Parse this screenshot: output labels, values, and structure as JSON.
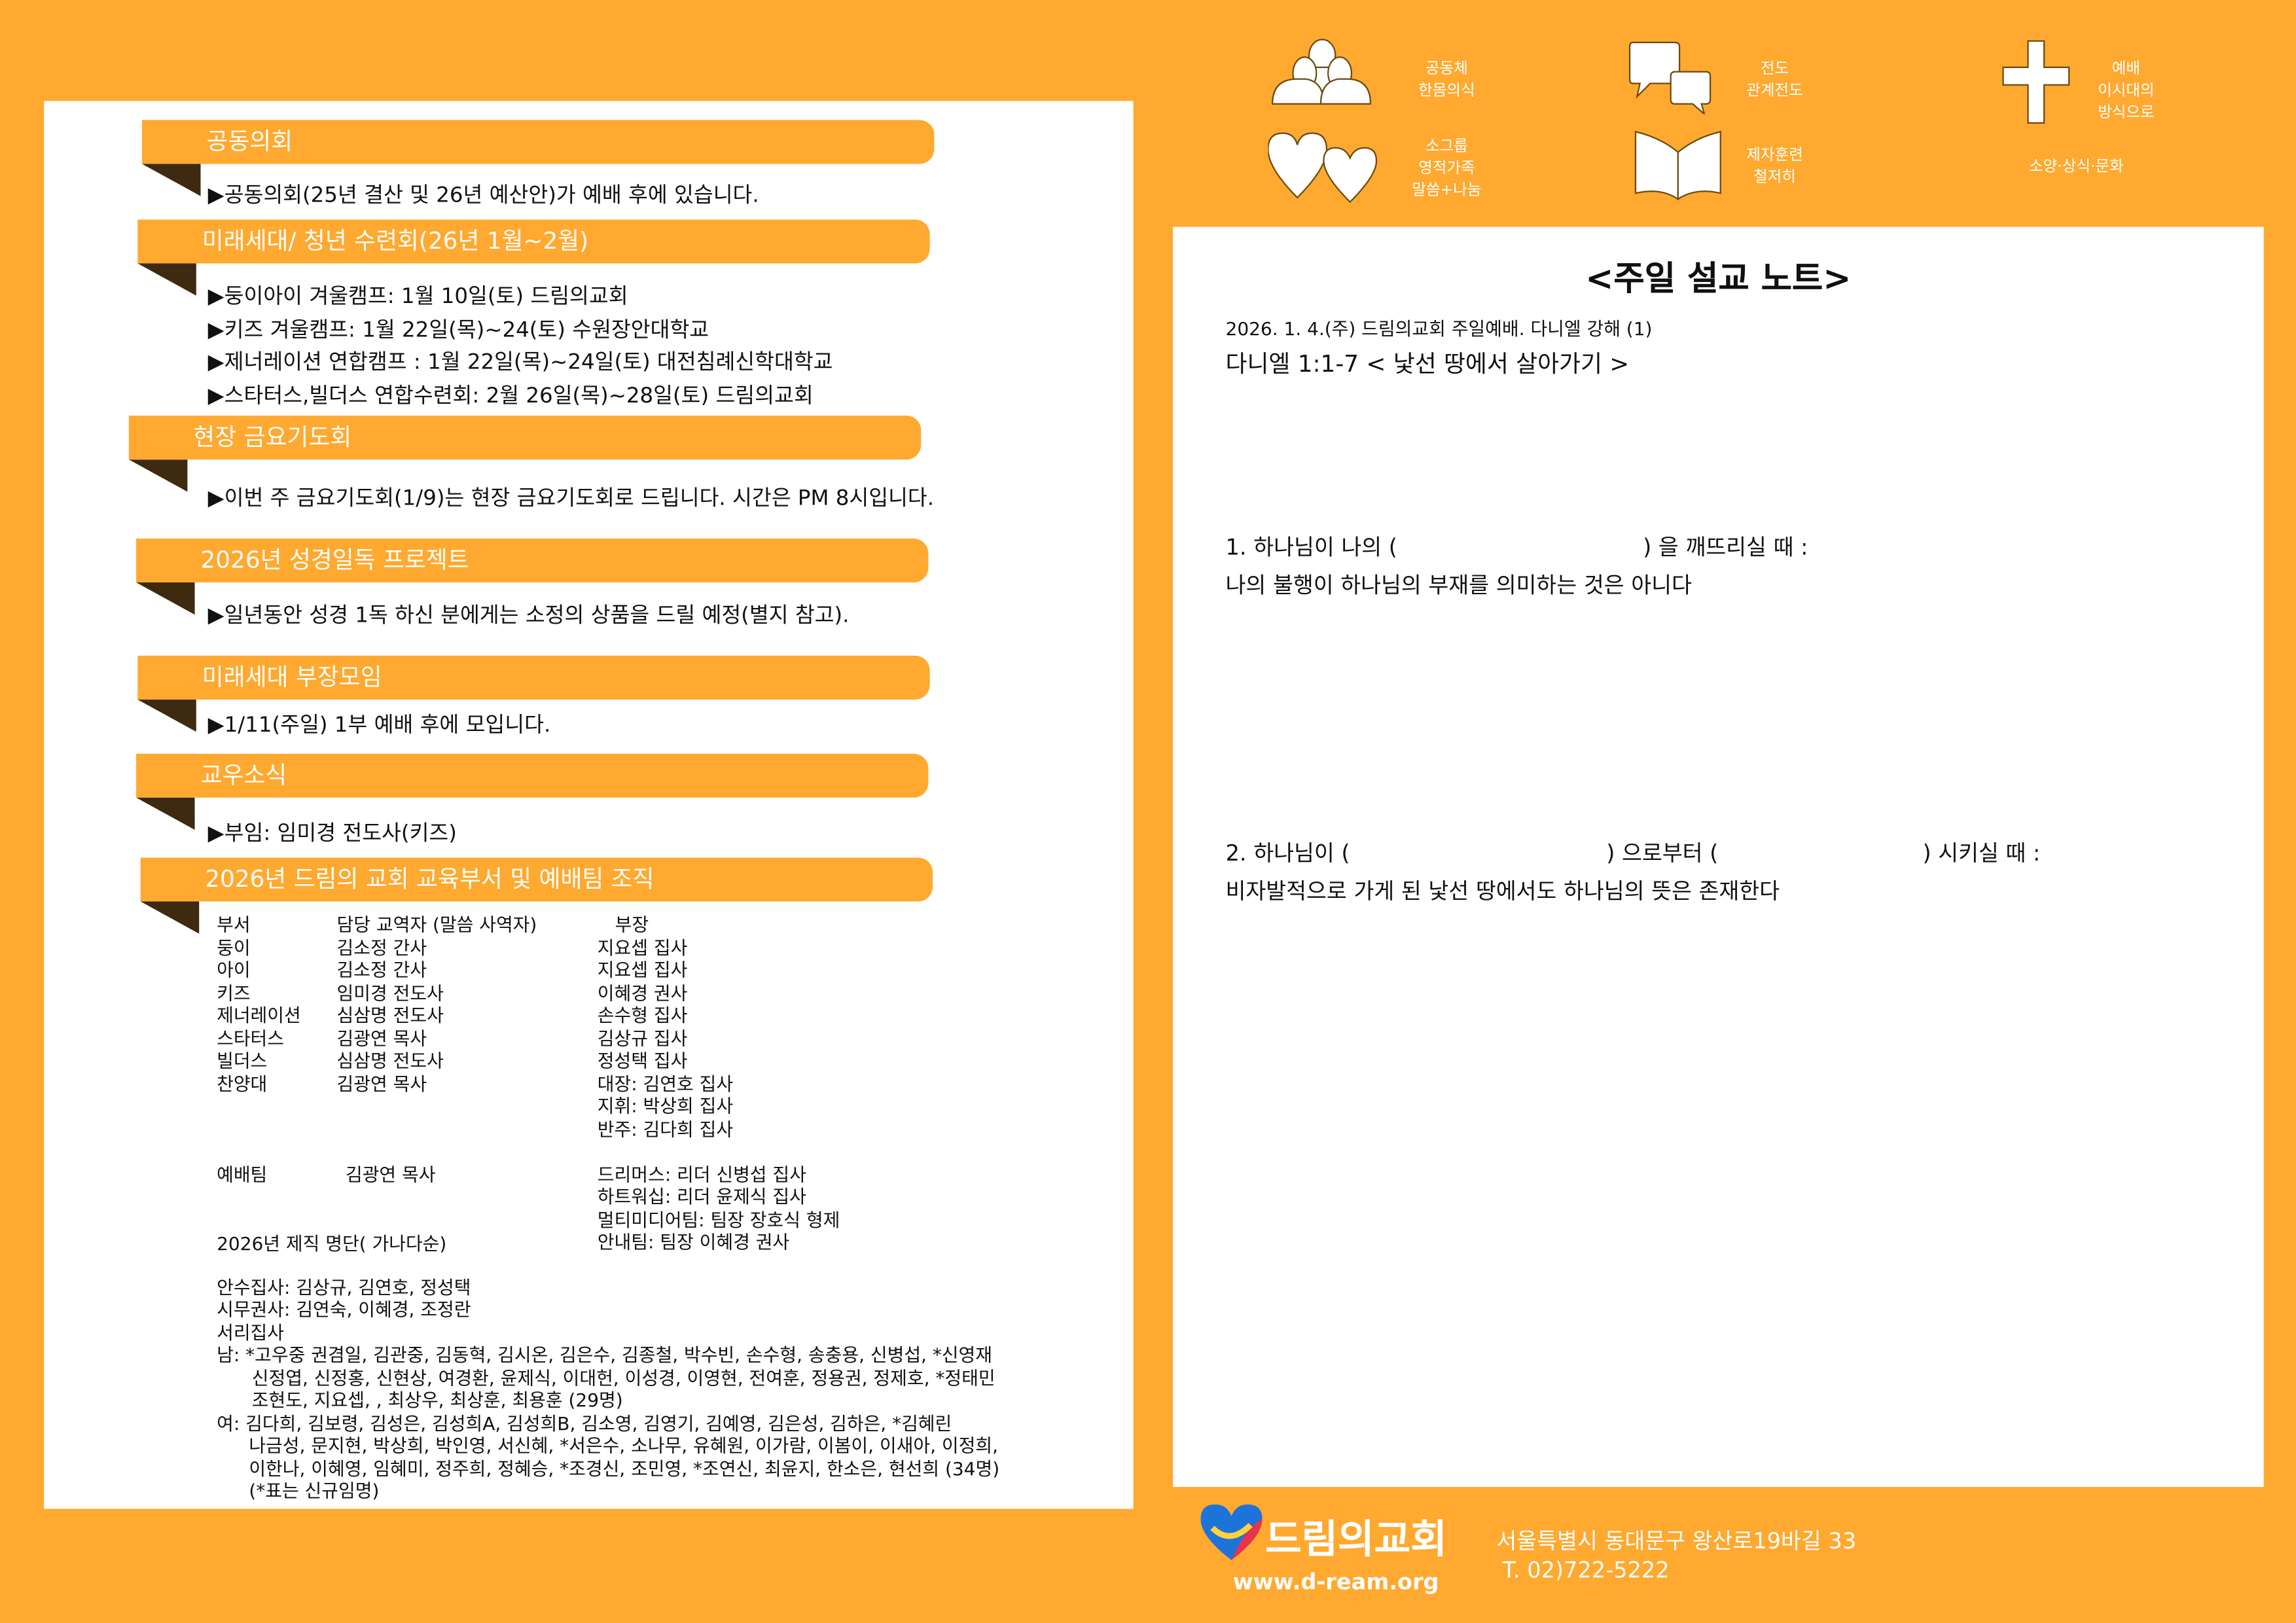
{
  "left": {
    "sections": [
      {
        "title": "공동의회",
        "items": [
          "▶공동의회(25년 결산 및 26년 예산안)가 예배 후에 있습니다."
        ]
      },
      {
        "title": "미래세대/ 청년 수련회(26년 1월~2월)",
        "items": [
          "▶둥이아이 겨울캠프: 1월 10일(토) 드림의교회",
          "▶키즈 겨울캠프: 1월 22일(목)~24(토) 수원장안대학교",
          "▶제너레이션 연합캠프 : 1월 22일(목)~24일(토) 대전침례신학대학교",
          "▶스타터스,빌더스 연합수련회: 2월 26일(목)~28일(토) 드림의교회"
        ]
      },
      {
        "title": "현장 금요기도회",
        "items": [
          "▶이번 주 금요기도회(1/9)는 현장 금요기도회로 드립니다. 시간은 PM 8시입니다."
        ]
      },
      {
        "title": "2026년 성경일독 프로젝트",
        "items": [
          "▶일년동안 성경 1독 하신 분에게는 소정의 상품을 드릴 예정(별지 참고)."
        ]
      },
      {
        "title": "미래세대 부장모임",
        "items": [
          "▶1/11(주일) 1부 예배 후에 모입니다."
        ]
      },
      {
        "title": "교우소식",
        "items": [
          "▶부임: 임미경 전도사(키즈)"
        ]
      },
      {
        "title": "2026년 드림의 교회  교육부서 및 예배팀 조직",
        "items": []
      }
    ],
    "org_table": {
      "headers": [
        "부서",
        "담당 교역자 (말씀 사역자)",
        "부장"
      ],
      "rows": [
        [
          "둥이",
          "김소정 간사",
          "지요셉 집사"
        ],
        [
          "아이",
          "김소정 간사",
          "지요셉 집사"
        ],
        [
          "키즈",
          "임미경 전도사",
          "이혜경 권사"
        ],
        [
          "제너레이션",
          "심삼명 전도사",
          "손수형 집사"
        ],
        [
          "스타터스",
          "김광연 목사",
          "김상규 집사"
        ],
        [
          "빌더스",
          "심삼명 전도사",
          "정성택 집사"
        ],
        [
          "찬양대",
          "김광연 목사",
          "대장: 김연호 집사"
        ],
        [
          "",
          "",
          "지휘: 박상희 집사"
        ],
        [
          "",
          "",
          "반주: 김다희 집사"
        ],
        [
          "예배팀",
          "김광연 목사",
          "드리머스: 리더 신병섭 집사"
        ],
        [
          "",
          "",
          "하트워십: 리더 윤제식 집사"
        ],
        [
          "",
          "",
          "멀티미디어팀: 팀장 장호식 형제"
        ],
        [
          "",
          "",
          "안내팀: 팀장 이혜경 권사"
        ]
      ]
    },
    "roster": {
      "title": "2026년 제직 명단( 가나다순)",
      "lines": [
        "안수집사: 김상규, 김연호, 정성택",
        "시무권사: 김연숙, 이혜경, 조정란",
        "서리집사",
        "남: *고우중 권겸일, 김관중, 김동혁, 김시온, 김은수, 김종철, 박수빈, 손수형, 송충용, 신병섭, *신영재",
        "신정엽, 신정홍, 신현상, 여경환, 윤제식, 이대헌, 이성경, 이영현, 전여훈, 정용권, 정제호, *정태민",
        "조현도, 지요셉, , 최상우, 최상훈, 최용훈 (29명)",
        "여: 김다희, 김보령,  김성은, 김성희A, 김성희B, 김소영, 김영기, 김예영, 김은성, 김하은, *김혜린",
        "나금성, 문지현, 박상희, 박인영, 서신혜, *서은수, 소나무, 유혜원, 이가람, 이봄이, 이새아, 이정희,",
        "이한나, 이혜영, 임혜미, 정주희, 정혜승, *조경신, 조민영, *조연신, 최윤지, 한소은,  현선희 (34명)",
        "(*표는 신규임명)"
      ]
    }
  },
  "values": [
    {
      "icon": "people-icon",
      "title": "공동체",
      "sub": "한몸의식"
    },
    {
      "icon": "speech-bubbles-icon",
      "title": "전도",
      "sub": "관계전도"
    },
    {
      "icon": "cross-icon",
      "title": "예배",
      "sub": "이시대의\n방식으로"
    },
    {
      "icon": "hearts-icon",
      "title": "소그룹",
      "sub": "영적가족\n말씀+나눔"
    },
    {
      "icon": "book-icon",
      "title": "제자훈련",
      "sub": "철저히"
    },
    {
      "icon": "",
      "title": "소양·상식·문화",
      "sub": ""
    }
  ],
  "sermon": {
    "title": "<주일 설교 노트>",
    "meta": "2026. 1. 4.(주) 드림의교회 주일예배. 다니엘 강해 (1)",
    "passage": "다니엘 1:1-7 < 낯선 땅에서 살아가기 >",
    "p1a": "1. 하나님이 나의 (",
    "p1b": ") 을 깨뜨리실 때 :",
    "p1c": "나의 불행이 하나님의 부재를 의미하는 것은 아니다",
    "p2a": "2. 하나님이 (",
    "p2b": ") 으로부터 (",
    "p2c": ") 시키실 때 :",
    "p2d": "비자발적으로 가게 된 낯선 땅에서도 하나님의 뜻은 존재한다"
  },
  "footer": {
    "church": "드림의교회",
    "url": "www.d-ream.org",
    "address": "서울특별시 동대문구 왕산로19바길 33",
    "phone": "T. 02)722-5222"
  },
  "colors": {
    "accent": "#FFA930",
    "fold": "#3d2a10",
    "logo_blue": "#1e73d8",
    "logo_red": "#e8334a"
  }
}
